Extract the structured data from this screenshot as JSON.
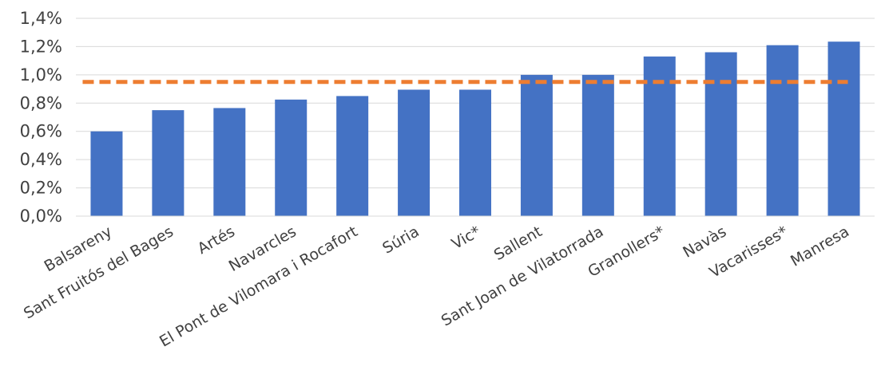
{
  "chart_data": {
    "type": "bar",
    "title": "",
    "xlabel": "",
    "ylabel": "",
    "categories": [
      "Balsareny",
      "Sant Fruitós del Bages",
      "Artés",
      "Navarcles",
      "El Pont de Vilomara i Rocafort",
      "Súria",
      "Vic*",
      "Sallent",
      "Sant Joan de Vilatorrada",
      "Granollers*",
      "Navàs",
      "Vacarisses*",
      "Manresa"
    ],
    "series": [
      {
        "values": [
          0.6,
          0.75,
          0.765,
          0.825,
          0.85,
          0.895,
          0.895,
          1.0,
          1.0,
          1.13,
          1.16,
          1.21,
          1.235
        ],
        "color": "#4472C4"
      }
    ],
    "reference_line": {
      "value": 0.95,
      "style": "dashed",
      "color": "#ED7D31"
    },
    "ylim": [
      0,
      1.4
    ],
    "yticks": [
      "0,0%",
      "0,2%",
      "0,4%",
      "0,6%",
      "0,8%",
      "1,0%",
      "1,2%",
      "1,4%"
    ],
    "ytick_values": [
      0,
      0.2,
      0.4,
      0.6,
      0.8,
      1.0,
      1.2,
      1.4
    ],
    "gridlines": true,
    "grid_color": "#D9D9D9",
    "legend": "none"
  }
}
